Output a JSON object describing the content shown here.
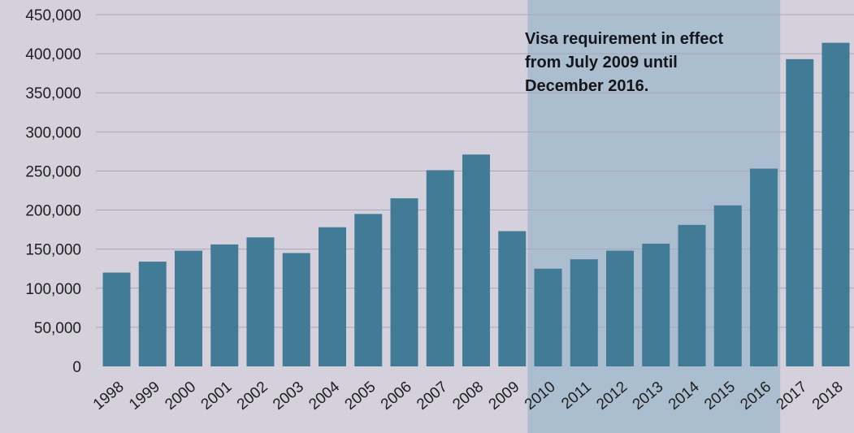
{
  "chart_data": {
    "type": "bar",
    "title": "",
    "xlabel": "",
    "ylabel": "",
    "categories": [
      "1998",
      "1999",
      "2000",
      "2001",
      "2002",
      "2003",
      "2004",
      "2005",
      "2006",
      "2007",
      "2008",
      "2009",
      "2010",
      "2011",
      "2012",
      "2013",
      "2014",
      "2015",
      "2016",
      "2017",
      "2018"
    ],
    "values": [
      120000,
      134000,
      148000,
      156000,
      165000,
      145000,
      178000,
      195000,
      215000,
      251000,
      271000,
      173000,
      125000,
      137000,
      148000,
      157000,
      181000,
      206000,
      253000,
      393000,
      414000
    ],
    "ylim": [
      0,
      450000
    ],
    "yticks": [
      0,
      50000,
      100000,
      150000,
      200000,
      250000,
      300000,
      350000,
      400000,
      450000
    ],
    "ytick_labels": [
      "0",
      "50,000",
      "100,000",
      "150,000",
      "200,000",
      "250,000",
      "300,000",
      "350,000",
      "400,000",
      "450,000"
    ],
    "grid": true,
    "legend": "none",
    "shaded_region": {
      "from_category": "2010",
      "to_category": "2016",
      "label_lines": [
        "Visa requirement in effect",
        "from July 2009 until",
        "December 2016."
      ]
    },
    "colors": {
      "background": "#d4d0dc",
      "bar": "#417b95",
      "shade": "#8fb3c8",
      "grid": "#aaa6b6"
    }
  }
}
